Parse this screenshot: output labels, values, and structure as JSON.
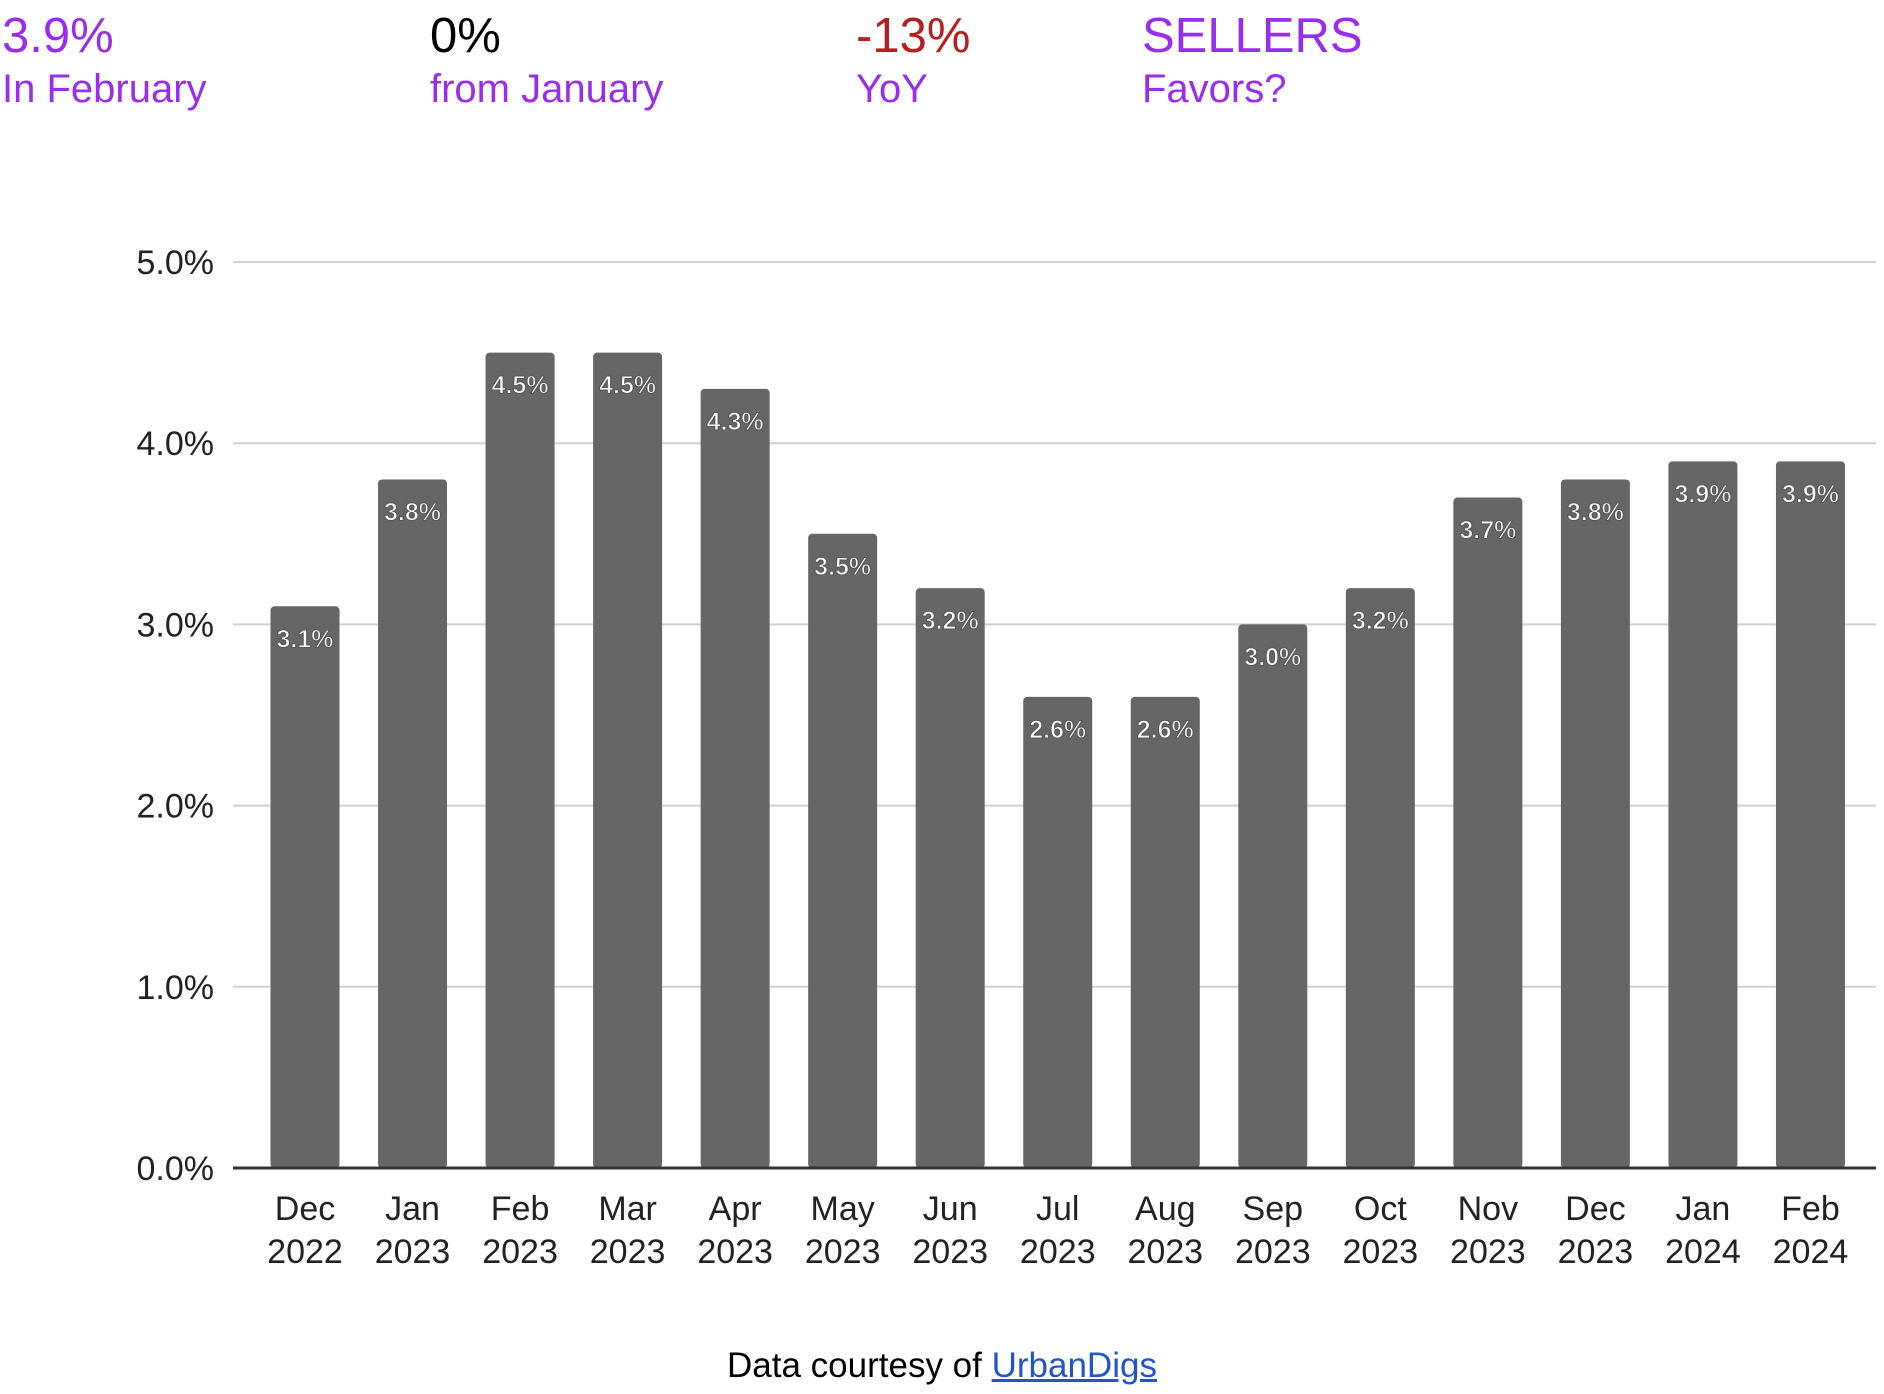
{
  "colors": {
    "accent": "#9a2cf0",
    "negative": "#b81e1e",
    "neutral": "#000000",
    "bar": "#666666",
    "link": "#2255cc"
  },
  "stats": [
    {
      "value": "3.9%",
      "label": "In February",
      "value_color": "#9a2cf0"
    },
    {
      "value": "0%",
      "label": "from January",
      "value_color": "#000000"
    },
    {
      "value": "-13%",
      "label": "YoY",
      "value_color": "#b81e1e"
    },
    {
      "value": "SELLERS",
      "label": "Favors?",
      "value_color": "#9a2cf0"
    }
  ],
  "chart_data": {
    "type": "bar",
    "categories": [
      [
        "Dec",
        "2022"
      ],
      [
        "Jan",
        "2023"
      ],
      [
        "Feb",
        "2023"
      ],
      [
        "Mar",
        "2023"
      ],
      [
        "Apr",
        "2023"
      ],
      [
        "May",
        "2023"
      ],
      [
        "Jun",
        "2023"
      ],
      [
        "Jul",
        "2023"
      ],
      [
        "Aug",
        "2023"
      ],
      [
        "Sep",
        "2023"
      ],
      [
        "Oct",
        "2023"
      ],
      [
        "Nov",
        "2023"
      ],
      [
        "Dec",
        "2023"
      ],
      [
        "Jan",
        "2024"
      ],
      [
        "Feb",
        "2024"
      ]
    ],
    "values": [
      3.1,
      3.8,
      4.5,
      4.5,
      4.3,
      3.5,
      3.2,
      2.6,
      2.6,
      3.0,
      3.2,
      3.7,
      3.8,
      3.9,
      3.9
    ],
    "data_labels": [
      "3.1%",
      "3.8%",
      "4.5%",
      "4.5%",
      "4.3%",
      "3.5%",
      "3.2%",
      "2.6%",
      "2.6%",
      "3.0%",
      "3.2%",
      "3.7%",
      "3.8%",
      "3.9%",
      "3.9%"
    ],
    "yticks": [
      0,
      1,
      2,
      3,
      4,
      5
    ],
    "ytick_labels": [
      "0.0%",
      "1.0%",
      "2.0%",
      "3.0%",
      "4.0%",
      "5.0%"
    ],
    "ylim": [
      0,
      5
    ],
    "grid": true,
    "legend": "none",
    "title": "",
    "xlabel": "",
    "ylabel": ""
  },
  "footer": {
    "text": "Data courtesy of ",
    "link_text": "UrbanDigs"
  }
}
